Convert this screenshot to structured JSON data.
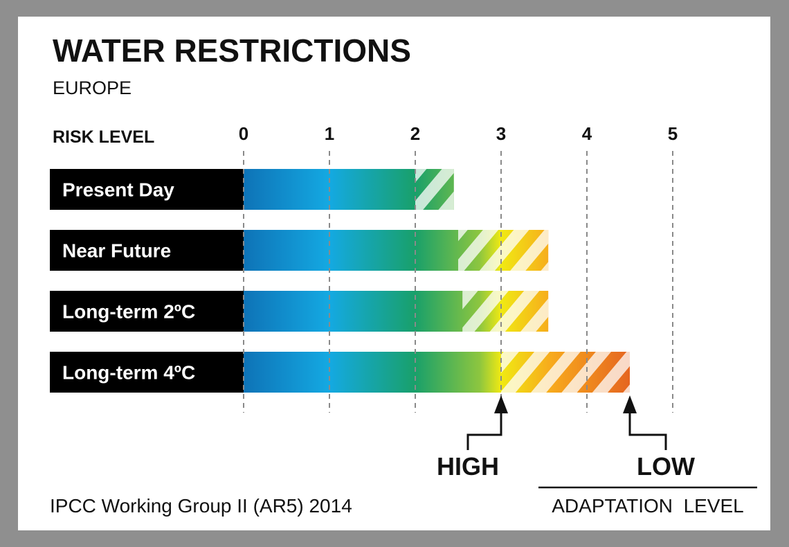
{
  "chart_data": {
    "type": "bar",
    "title": "WATER RESTRICTIONS",
    "subtitle": "EUROPE",
    "xlabel": "RISK LEVEL",
    "ticks": [
      "0",
      "1",
      "2",
      "3",
      "4",
      "5"
    ],
    "xlim": [
      0,
      5
    ],
    "categories": [
      "Present Day",
      "Near Future",
      "Long-term 2ºC",
      "Long-term 4ºC"
    ],
    "series": [
      {
        "values": [
          2.0,
          2.5,
          2.55,
          3.0
        ]
      },
      {
        "values": [
          2.45,
          3.55,
          3.55,
          4.5
        ]
      }
    ],
    "markers": [
      {
        "label": "HIGH",
        "value": 3.0
      },
      {
        "label": "LOW",
        "value": 4.5
      }
    ],
    "marker_axis_label": "ADAPTATION  LEVEL",
    "source": "IPCC Working Group II (AR5) 2014"
  }
}
